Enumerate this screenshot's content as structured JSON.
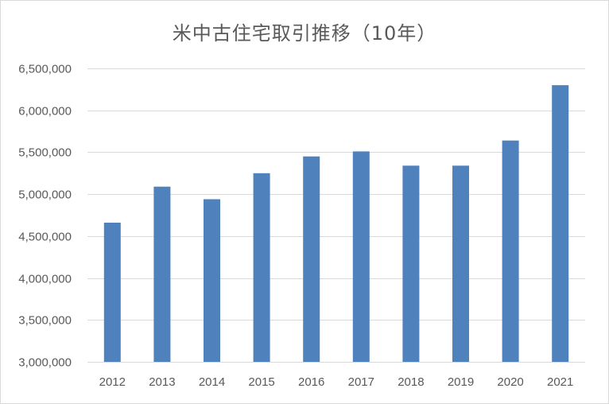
{
  "chart_data": {
    "type": "bar",
    "title": "米中古住宅取引推移（10年）",
    "categories": [
      "2012",
      "2013",
      "2014",
      "2015",
      "2016",
      "2017",
      "2018",
      "2019",
      "2020",
      "2021"
    ],
    "values": [
      4660000,
      5090000,
      4940000,
      5250000,
      5450000,
      5510000,
      5340000,
      5340000,
      5640000,
      6300000
    ],
    "ylim": [
      3000000,
      6500000
    ],
    "yticks": [
      3000000,
      3500000,
      4000000,
      4500000,
      5000000,
      5500000,
      6000000,
      6500000
    ],
    "ytick_labels": [
      "3,000,000",
      "3,500,000",
      "4,000,000",
      "4,500,000",
      "5,000,000",
      "5,500,000",
      "6,000,000",
      "6,500,000"
    ],
    "grid": true,
    "legend": "none",
    "bar_color": "#4f81bd",
    "grid_color": "#d9d9d9"
  }
}
